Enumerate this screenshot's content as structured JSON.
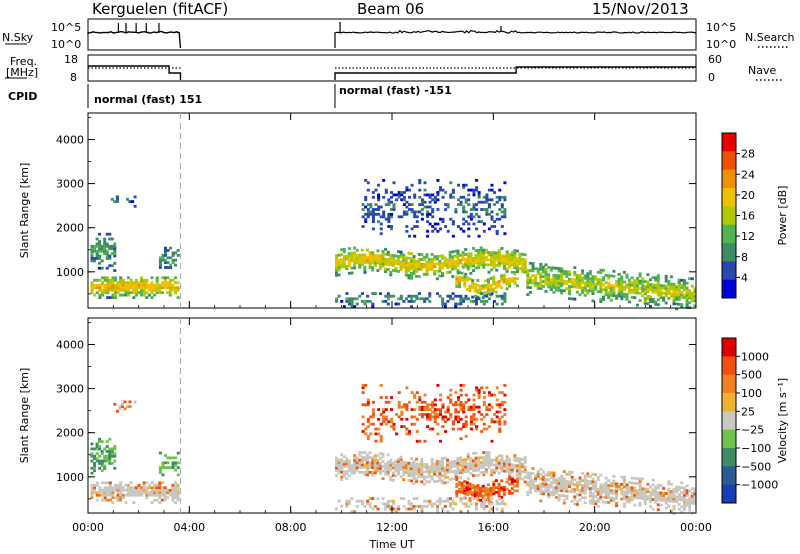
{
  "header": {
    "station": "Kerguelen (fitACF)",
    "beam": "Beam 06",
    "date": "15/Nov/2013"
  },
  "panels": {
    "nsky": {
      "label": "N.Sky",
      "left_ticks": [
        "10^5",
        "10^0"
      ],
      "right_ticks": [
        "10^5",
        "10^0"
      ],
      "right_label": "N.Search"
    },
    "freq": {
      "label_line1": "Freq.",
      "label_line2": "[MHz]",
      "left_ticks": [
        "18",
        "8"
      ],
      "right_ticks": [
        "60",
        "0"
      ],
      "right_label": "Nave"
    },
    "cpid": {
      "label": "CPID",
      "mode1": "normal (fast) 151",
      "mode2": "normal (fast) -151"
    }
  },
  "colors": {
    "power_scale": [
      "#0000d8",
      "#2848b0",
      "#3c8c64",
      "#50b450",
      "#b4c800",
      "#f0c000",
      "#f09000",
      "#f05000",
      "#e80000"
    ],
    "velocity_scale": [
      "#1a3cb4",
      "#2c5a96",
      "#3c8c64",
      "#6cc44c",
      "#c8c8c0",
      "#f0b030",
      "#f08020",
      "#f05010",
      "#e00000"
    ],
    "ground_scatter": "#c8c8c0"
  },
  "chart_data": [
    {
      "type": "heatmap",
      "title": "",
      "xlabel": "",
      "ylabel": "Slant Range [km]",
      "colorbar_label": "Power [dB]",
      "colorbar_ticks": [
        "28",
        "24",
        "20",
        "16",
        "12",
        "8",
        "4"
      ],
      "colorbar_range": [
        0,
        32
      ],
      "x_ticks": [
        "00:00",
        "04:00",
        "08:00",
        "12:00",
        "16:00",
        "20:00",
        "00:00"
      ],
      "y_ticks": [
        "4000",
        "3000",
        "2000",
        "1000"
      ],
      "xlim_hours": [
        0,
        24
      ],
      "ylim_km": [
        180,
        4600
      ],
      "data_gap_hours": [
        3.65,
        9.75
      ],
      "dashed_marker_hour": 3.65
    },
    {
      "type": "heatmap",
      "title": "",
      "xlabel": "Time UT",
      "ylabel": "Slant Range [km]",
      "colorbar_label": "Velocity [m s⁻¹]",
      "colorbar_ticks": [
        "1000",
        "500",
        "100",
        "25",
        "−25",
        "−100",
        "−500",
        "−1000"
      ],
      "x_ticks": [
        "00:00",
        "04:00",
        "08:00",
        "12:00",
        "16:00",
        "20:00",
        "00:00"
      ],
      "y_ticks": [
        "4000",
        "3000",
        "2000",
        "1000"
      ],
      "xlim_hours": [
        0,
        24
      ],
      "ylim_km": [
        180,
        4600
      ],
      "data_gap_hours": [
        3.65,
        9.75
      ],
      "dashed_marker_hour": 3.65
    }
  ]
}
